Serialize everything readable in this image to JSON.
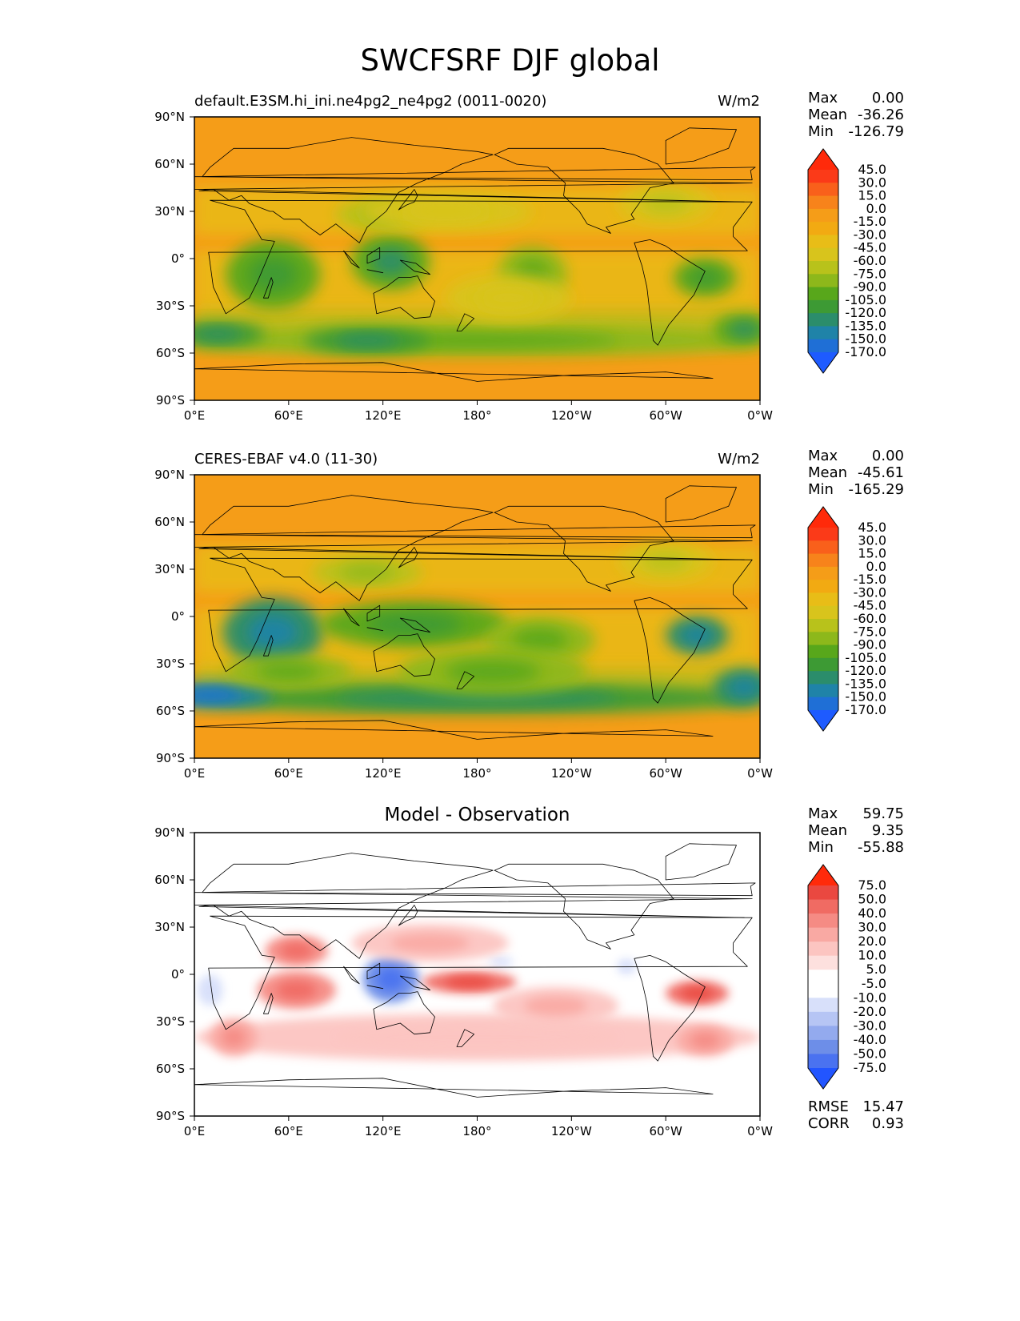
{
  "title": "SWCFSRF DJF global",
  "colors": {
    "seq": [
      "#1e5bff",
      "#1f6fd6",
      "#1f83a8",
      "#2b8d6b",
      "#3d9a34",
      "#58a71b",
      "#8db81b",
      "#b8c21b",
      "#d8c41c",
      "#e8bd17",
      "#f2aa12",
      "#f59d18",
      "#f7831b",
      "#f9601b",
      "#fb3a18",
      "#ff2a0a"
    ],
    "div": [
      "#2255ff",
      "#4a72f0",
      "#6d8ee8",
      "#93aaee",
      "#b6c5f4",
      "#d8e0fa",
      "#ffffff",
      "#ffffff",
      "#fde0de",
      "#fcc5c1",
      "#f9a9a3",
      "#f58b84",
      "#f06b63",
      "#ea4840",
      "#ff2a0a"
    ],
    "land_line": "#000000"
  },
  "chart_data": [
    {
      "type": "heatmap",
      "panel": "model",
      "title_left": "default.E3SM.hi_ini.ne4pg2_ne4pg2 (0011-0020)",
      "title_right": "W/m2",
      "stats": [
        {
          "label": "Max",
          "value": "0.00"
        },
        {
          "label": "Mean",
          "value": "-36.26"
        },
        {
          "label": "Min",
          "value": "-126.79"
        }
      ],
      "colorbar_ticks": [
        "45.0",
        "30.0",
        "15.0",
        "0.0",
        "-15.0",
        "-30.0",
        "-45.0",
        "-60.0",
        "-75.0",
        "-90.0",
        "-105.0",
        "-120.0",
        "-135.0",
        "-150.0",
        "-170.0"
      ],
      "xticks": [
        "0°E",
        "60°E",
        "120°E",
        "180°",
        "120°W",
        "60°W",
        "0°W"
      ],
      "yticks": [
        "90°N",
        "60°N",
        "30°N",
        "0°",
        "30°S",
        "60°S",
        "90°S"
      ],
      "xlim": [
        0,
        360
      ],
      "ylim": [
        -90,
        90
      ],
      "blobs": [
        {
          "lon": 50,
          "lat": -10,
          "rx": 30,
          "ry": 22,
          "value": -95
        },
        {
          "lon": 125,
          "lat": -2,
          "rx": 25,
          "ry": 18,
          "value": -100
        },
        {
          "lon": 120,
          "lat": 28,
          "rx": 30,
          "ry": 10,
          "value": -65
        },
        {
          "lon": 215,
          "lat": -10,
          "rx": 22,
          "ry": 18,
          "value": -75
        },
        {
          "lon": 160,
          "lat": 30,
          "rx": 55,
          "ry": 12,
          "value": -45
        },
        {
          "lon": 300,
          "lat": 35,
          "rx": 30,
          "ry": 12,
          "value": -55
        },
        {
          "lon": 325,
          "lat": -12,
          "rx": 20,
          "ry": 12,
          "value": -90
        },
        {
          "lon": 180,
          "lat": -52,
          "rx": 180,
          "ry": 10,
          "value": -85
        },
        {
          "lon": 110,
          "lat": -52,
          "rx": 40,
          "ry": 8,
          "value": -105
        },
        {
          "lon": 15,
          "lat": -48,
          "rx": 30,
          "ry": 8,
          "value": -110
        },
        {
          "lon": 350,
          "lat": -45,
          "rx": 20,
          "ry": 10,
          "value": -100
        },
        {
          "lon": 200,
          "lat": -25,
          "rx": 40,
          "ry": 15,
          "value": -45
        }
      ]
    },
    {
      "type": "heatmap",
      "panel": "obs",
      "title_left": "CERES-EBAF v4.0 (11-30)",
      "title_right": "W/m2",
      "stats": [
        {
          "label": "Max",
          "value": "0.00"
        },
        {
          "label": "Mean",
          "value": "-45.61"
        },
        {
          "label": "Min",
          "value": "-165.29"
        }
      ],
      "colorbar_ticks": [
        "45.0",
        "30.0",
        "15.0",
        "0.0",
        "-15.0",
        "-30.0",
        "-45.0",
        "-60.0",
        "-75.0",
        "-90.0",
        "-105.0",
        "-120.0",
        "-135.0",
        "-150.0",
        "-170.0"
      ],
      "xticks": [
        "0°E",
        "60°E",
        "120°E",
        "180°",
        "120°W",
        "60°W",
        "0°W"
      ],
      "yticks": [
        "90°N",
        "60°N",
        "30°N",
        "0°",
        "30°S",
        "60°S",
        "90°S"
      ],
      "xlim": [
        0,
        360
      ],
      "ylim": [
        -90,
        90
      ],
      "blobs": [
        {
          "lon": 50,
          "lat": -10,
          "rx": 32,
          "ry": 22,
          "value": -120
        },
        {
          "lon": 140,
          "lat": -5,
          "rx": 60,
          "ry": 15,
          "value": -90
        },
        {
          "lon": 110,
          "lat": 28,
          "rx": 35,
          "ry": 10,
          "value": -65
        },
        {
          "lon": 220,
          "lat": -15,
          "rx": 35,
          "ry": 15,
          "value": -85
        },
        {
          "lon": 300,
          "lat": 35,
          "rx": 30,
          "ry": 12,
          "value": -55
        },
        {
          "lon": 320,
          "lat": -12,
          "rx": 20,
          "ry": 12,
          "value": -120
        },
        {
          "lon": 180,
          "lat": -52,
          "rx": 180,
          "ry": 10,
          "value": -105
        },
        {
          "lon": 10,
          "lat": -50,
          "rx": 40,
          "ry": 8,
          "value": -135
        },
        {
          "lon": 350,
          "lat": -45,
          "rx": 20,
          "ry": 12,
          "value": -120
        },
        {
          "lon": 190,
          "lat": -35,
          "rx": 60,
          "ry": 15,
          "value": -75
        },
        {
          "lon": 60,
          "lat": -35,
          "rx": 40,
          "ry": 10,
          "value": -75
        }
      ]
    },
    {
      "type": "heatmap",
      "panel": "diff",
      "title_center": "Model - Observation",
      "stats": [
        {
          "label": "Max",
          "value": "59.75"
        },
        {
          "label": "Mean",
          "value": "9.35"
        },
        {
          "label": "Min",
          "value": "-55.88"
        }
      ],
      "stats_bottom": [
        {
          "label": "RMSE",
          "value": "15.47"
        },
        {
          "label": "CORR",
          "value": "0.93"
        }
      ],
      "colorbar_ticks": [
        "75.0",
        "50.0",
        "40.0",
        "30.0",
        "20.0",
        "10.0",
        "5.0",
        "-5.0",
        "-10.0",
        "-20.0",
        "-30.0",
        "-40.0",
        "-50.0",
        "-75.0"
      ],
      "xticks": [
        "0°E",
        "60°E",
        "120°E",
        "180°",
        "120°W",
        "60°W",
        "0°W"
      ],
      "yticks": [
        "90°N",
        "60°N",
        "30°N",
        "0°",
        "30°S",
        "60°S",
        "90°S"
      ],
      "xlim": [
        0,
        360
      ],
      "ylim": [
        -90,
        90
      ],
      "blobs": [
        {
          "lon": 125,
          "lat": -3,
          "rx": 18,
          "ry": 15,
          "value": -45
        },
        {
          "lon": 10,
          "lat": -10,
          "rx": 8,
          "ry": 10,
          "value": -12
        },
        {
          "lon": 275,
          "lat": 5,
          "rx": 6,
          "ry": 5,
          "value": -12
        },
        {
          "lon": 195,
          "lat": 8,
          "rx": 8,
          "ry": 3,
          "value": -12
        },
        {
          "lon": 175,
          "lat": -5,
          "rx": 30,
          "ry": 7,
          "value": 45
        },
        {
          "lon": 65,
          "lat": -10,
          "rx": 25,
          "ry": 12,
          "value": 32
        },
        {
          "lon": 65,
          "lat": 15,
          "rx": 20,
          "ry": 10,
          "value": 32
        },
        {
          "lon": 320,
          "lat": -12,
          "rx": 20,
          "ry": 8,
          "value": 45
        },
        {
          "lon": 150,
          "lat": 20,
          "rx": 50,
          "ry": 12,
          "value": 18
        },
        {
          "lon": 180,
          "lat": -40,
          "rx": 180,
          "ry": 15,
          "value": 15
        },
        {
          "lon": 25,
          "lat": -40,
          "rx": 15,
          "ry": 12,
          "value": 25
        },
        {
          "lon": 325,
          "lat": -42,
          "rx": 18,
          "ry": 10,
          "value": 30
        },
        {
          "lon": 230,
          "lat": -20,
          "rx": 40,
          "ry": 12,
          "value": 18
        }
      ]
    }
  ]
}
